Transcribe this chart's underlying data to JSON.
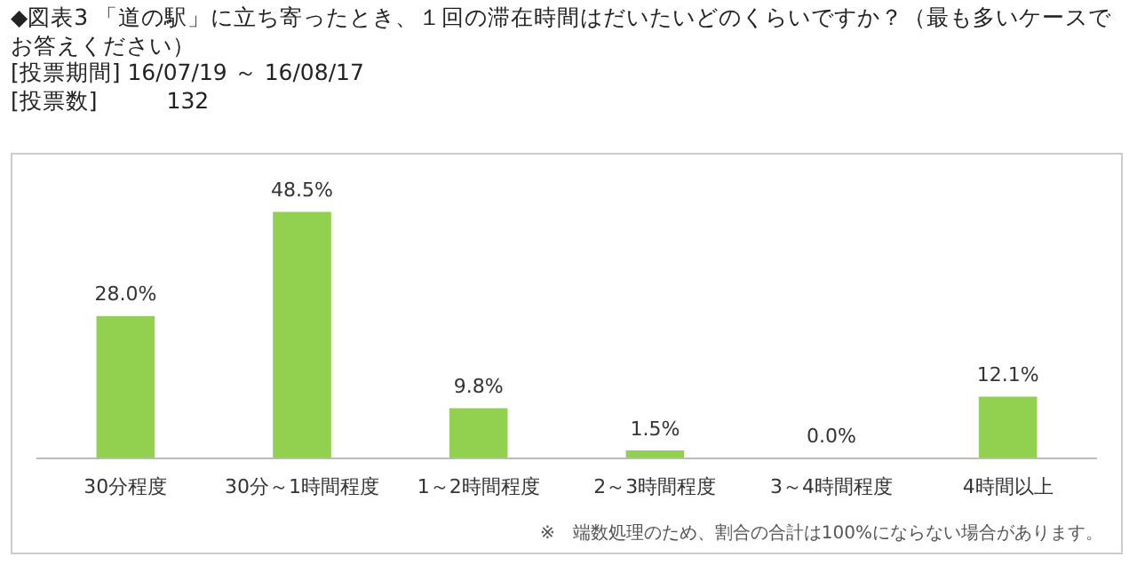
{
  "chart_data": {
    "type": "bar",
    "title": "◆図表3 「道の駅」に立ち寄ったとき、１回の滞在時間はだいたいどのくらいですか？（最も多いケースでお答えください）",
    "subtitle": "[投票期間] 16/07/19 ～ 16/08/17",
    "annotations": [
      "[投票数]　　　132",
      "※　端数処理のため、割合の合計は100%にならない場合があります。"
    ],
    "categories": [
      "30分程度",
      "30分～1時間程度",
      "1～2時間程度",
      "2～3時間程度",
      "3～4時間程度",
      "4時間以上"
    ],
    "values": [
      28.0,
      48.5,
      9.8,
      1.5,
      0.0,
      12.1
    ],
    "value_labels": [
      "28.0%",
      "48.5%",
      "9.8%",
      "1.5%",
      "0.0%",
      "12.1%"
    ],
    "color": "#92d050",
    "grid": false,
    "legend": false
  }
}
